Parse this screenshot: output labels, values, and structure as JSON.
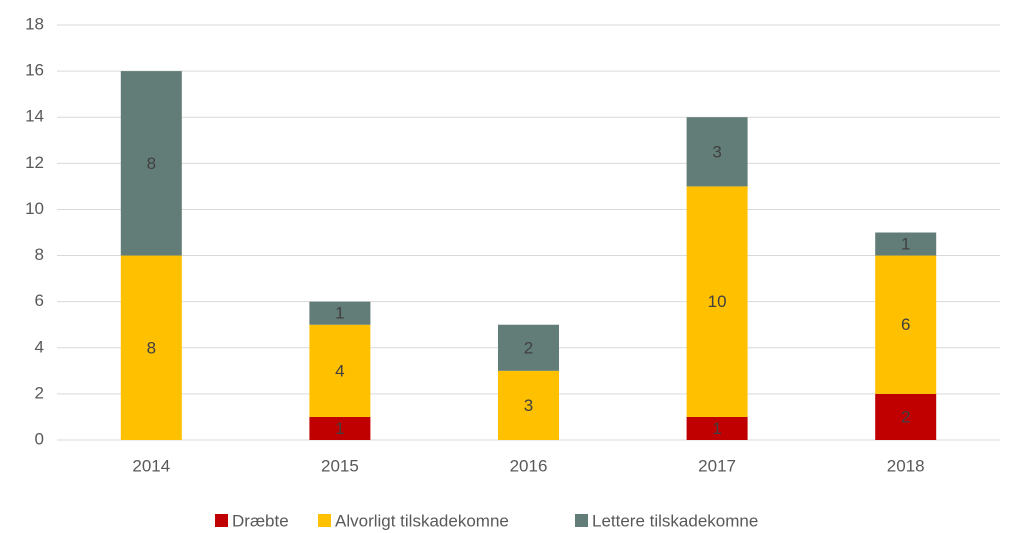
{
  "chart_data": {
    "type": "stacked_bar",
    "categories": [
      "2014",
      "2015",
      "2016",
      "2017",
      "2018"
    ],
    "series": [
      {
        "name": "Dræbte",
        "color": "#c00000",
        "values": [
          null,
          1,
          null,
          1,
          2
        ]
      },
      {
        "name": "Alvorligt tilskadekomne",
        "color": "#ffc000",
        "values": [
          8,
          4,
          3,
          10,
          6
        ]
      },
      {
        "name": "Lettere tilskadekomne",
        "color": "#627d77",
        "values": [
          8,
          1,
          2,
          3,
          1
        ]
      }
    ],
    "ylim": [
      0,
      18
    ],
    "yticks": [
      0,
      2,
      4,
      6,
      8,
      10,
      12,
      14,
      16,
      18
    ],
    "grid": true,
    "legend": "bottom"
  }
}
